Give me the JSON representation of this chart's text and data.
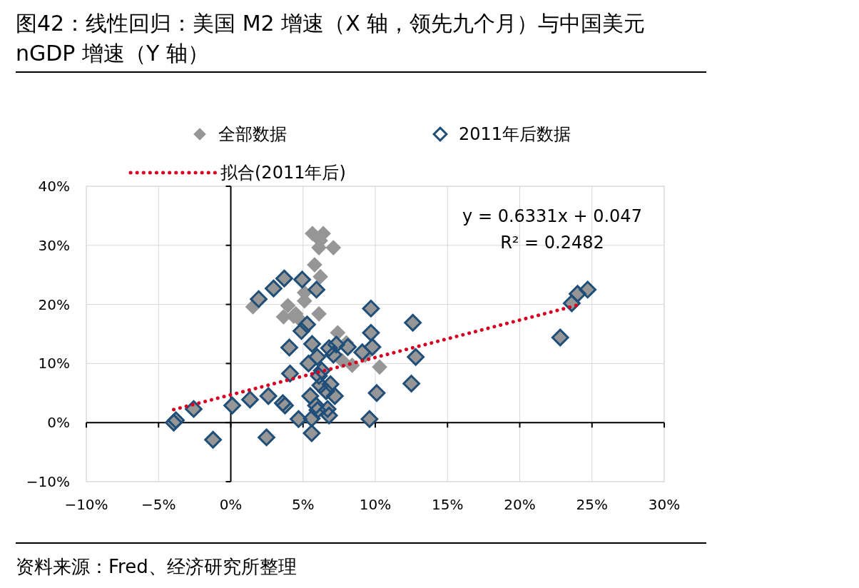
{
  "chart_data": {
    "type": "scatter",
    "title": "图42：线性回归：美国 M2 增速（X 轴，领先九个月）与中国美元 nGDP 增速（Y 轴）",
    "xlim": [
      -10,
      30
    ],
    "xticks": [
      {
        "value": -10,
        "label": "−10%"
      },
      {
        "value": -5,
        "label": "−5%"
      },
      {
        "value": 0,
        "label": "0%"
      },
      {
        "value": 5,
        "label": "5%"
      },
      {
        "value": 10,
        "label": "10%"
      },
      {
        "value": 15,
        "label": "15%"
      },
      {
        "value": 20,
        "label": "20%"
      },
      {
        "value": 25,
        "label": "25%"
      },
      {
        "value": 30,
        "label": "30%"
      }
    ],
    "ylim": [
      -10,
      40
    ],
    "yticks": [
      {
        "value": -10,
        "label": "−10%"
      },
      {
        "value": 0,
        "label": "0%"
      },
      {
        "value": 10,
        "label": "10%"
      },
      {
        "value": 20,
        "label": "20%"
      },
      {
        "value": 30,
        "label": "30%"
      },
      {
        "value": 40,
        "label": "40%"
      }
    ],
    "grid": true,
    "legend": "top",
    "series": [
      {
        "name": "全部数据",
        "color": "#969696",
        "marker": "diamond",
        "x": [
          5.65,
          6.4,
          6.1,
          6.2,
          7.1,
          5.8,
          6.2,
          5.1,
          5.1,
          1.53,
          3.95,
          3.65,
          4.35,
          4.5,
          4.74,
          6.1,
          7.4,
          7.7,
          8.4,
          10.3,
          9.3,
          8.0,
          -3.95,
          -3.8,
          -2.57,
          -1.23,
          0.1,
          1.33,
          1.93,
          2.96,
          3.7,
          4.94,
          5.93,
          5.28,
          4.89,
          4.05,
          4.1,
          2.6,
          3.6,
          3.75,
          2.47,
          4.69,
          5.6,
          5.6,
          5.63,
          5.38,
          5.98,
          6.8,
          7.3,
          7.1,
          6.1,
          6.2,
          6.6,
          6.9,
          7.2,
          5.5,
          5.9,
          6.0,
          6.7,
          6.8,
          8.1,
          9.1,
          9.7,
          9.7,
          9.8,
          10.1,
          9.6,
          12.6,
          12.8,
          12.5,
          22.8,
          23.6,
          24.0,
          24.7,
          6.3
        ],
        "values": [
          32.0,
          32.0,
          29.6,
          30.8,
          29.6,
          26.7,
          24.7,
          22.0,
          20.6,
          19.6,
          19.8,
          17.9,
          18.0,
          18.4,
          17.5,
          18.4,
          15.2,
          10.5,
          9.7,
          9.4,
          11.4,
          13.5,
          0,
          0.4,
          2.3,
          -2.9,
          2.9,
          3.9,
          20.9,
          22.7,
          24.4,
          24.2,
          22.5,
          16.6,
          15.5,
          12.7,
          8.3,
          4.5,
          3.3,
          2.9,
          -2.5,
          0.6,
          0.7,
          -1.8,
          13.3,
          10.0,
          11.1,
          12.6,
          13.2,
          11.5,
          7.9,
          6.3,
          5.3,
          6.5,
          4.5,
          4.5,
          2.9,
          2.1,
          2.3,
          1.2,
          12.8,
          11.9,
          19.3,
          15.2,
          12.8,
          5.0,
          0.6,
          16.9,
          11.1,
          6.6,
          14.4,
          20.2,
          21.8,
          22.5,
          8.8
        ]
      },
      {
        "name": "2011年后数据",
        "color": "#1f4e79",
        "marker": "diamond",
        "x": [
          -3.95,
          -3.8,
          -2.57,
          -1.23,
          0.1,
          1.33,
          1.93,
          2.96,
          3.7,
          4.94,
          5.93,
          5.28,
          4.89,
          4.05,
          4.1,
          2.6,
          3.6,
          3.75,
          2.47,
          4.69,
          5.6,
          5.6,
          5.63,
          5.38,
          5.98,
          6.8,
          7.3,
          7.1,
          6.1,
          6.2,
          6.6,
          6.9,
          7.2,
          5.5,
          5.9,
          6.0,
          6.7,
          6.8,
          8.1,
          9.1,
          9.7,
          9.7,
          9.8,
          10.1,
          9.6,
          12.6,
          12.8,
          12.5,
          22.8,
          23.6,
          24.0,
          24.7,
          6.3
        ],
        "values": [
          0,
          0.4,
          2.3,
          -2.9,
          2.9,
          3.9,
          20.9,
          22.7,
          24.4,
          24.2,
          22.5,
          16.6,
          15.5,
          12.7,
          8.3,
          4.5,
          3.3,
          2.9,
          -2.5,
          0.6,
          0.7,
          -1.8,
          13.3,
          10.0,
          11.1,
          12.6,
          13.2,
          11.5,
          7.9,
          6.3,
          5.3,
          6.5,
          4.5,
          4.5,
          2.9,
          2.1,
          2.3,
          1.2,
          12.8,
          11.9,
          19.3,
          15.2,
          12.8,
          5.0,
          0.6,
          16.9,
          11.1,
          6.6,
          14.4,
          20.2,
          21.8,
          22.5,
          8.8
        ]
      },
      {
        "name": "拟合(2011年后)",
        "type": "line",
        "color": "#d7001f",
        "line_style": "dotted",
        "marker": "none",
        "x": [
          -3.95,
          24.2
        ],
        "values": [
          2.2,
          20.0
        ]
      }
    ],
    "annotations": [
      "y = 0.6331x + 0.047",
      "R² = 0.2482",
      "资料来源：Fred、经济研究所整理"
    ]
  }
}
